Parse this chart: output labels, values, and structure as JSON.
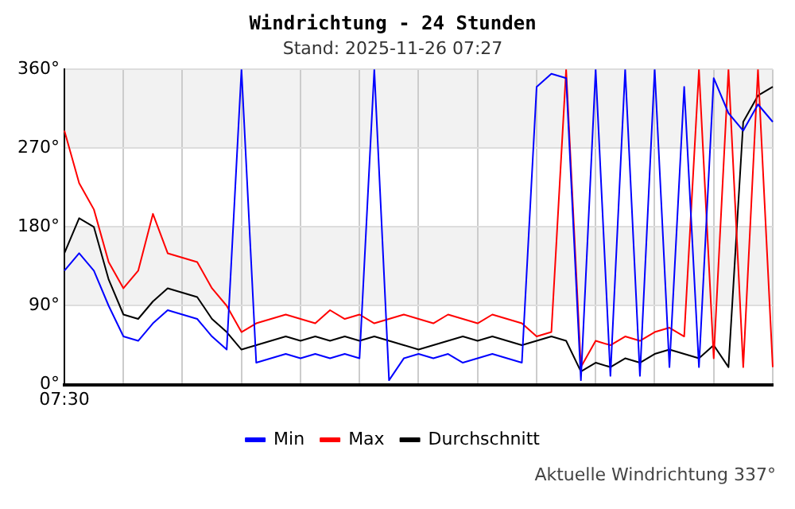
{
  "chart_data": {
    "type": "line",
    "title": "Windrichtung - 24 Stunden",
    "subtitle": "Stand: 2025-11-26 07:27",
    "annotations": [
      "Aktuelle Windrichtung 337°"
    ],
    "categories": [
      "07:30",
      null,
      null,
      null,
      null,
      null,
      null,
      null,
      null,
      null,
      null,
      null,
      null,
      null,
      null,
      null,
      null,
      null,
      null,
      null,
      null,
      null,
      null,
      null,
      null,
      null,
      null,
      null,
      null,
      null,
      null,
      null,
      null,
      null,
      null,
      null,
      null,
      null,
      null,
      null,
      null,
      null,
      null,
      null,
      null,
      null,
      null,
      null,
      null
    ],
    "ylim": [
      0,
      360
    ],
    "yticks": [
      {
        "value": 0,
        "label": "0°"
      },
      {
        "value": 90,
        "label": "90°"
      },
      {
        "value": 180,
        "label": "180°"
      },
      {
        "value": 270,
        "label": "270°"
      },
      {
        "value": 360,
        "label": "360°"
      }
    ],
    "grid": true,
    "legend": "bottom",
    "marker": "none",
    "line_style": "solid",
    "bands": [
      {
        "axis": "y",
        "from": 90,
        "to": 180,
        "color": "#f2f2f2"
      },
      {
        "axis": "y",
        "from": 270,
        "to": 360,
        "color": "#f2f2f2"
      }
    ],
    "series": [
      {
        "name": "Min",
        "color": "#0000ff",
        "values": [
          130,
          150,
          130,
          90,
          55,
          50,
          70,
          85,
          80,
          75,
          55,
          40,
          360,
          25,
          30,
          35,
          30,
          35,
          30,
          35,
          30,
          360,
          5,
          30,
          35,
          30,
          35,
          25,
          30,
          35,
          30,
          25,
          340,
          355,
          350,
          5,
          360,
          10,
          360,
          10,
          360,
          20,
          340,
          20,
          350,
          310,
          290,
          320,
          300
        ]
      },
      {
        "name": "Max",
        "color": "#ff0000",
        "values": [
          290,
          230,
          200,
          140,
          110,
          130,
          195,
          150,
          145,
          140,
          110,
          90,
          60,
          70,
          75,
          80,
          75,
          70,
          85,
          75,
          80,
          70,
          75,
          80,
          75,
          70,
          80,
          75,
          70,
          80,
          75,
          70,
          55,
          60,
          360,
          20,
          50,
          45,
          55,
          50,
          60,
          65,
          55,
          360,
          30,
          360,
          20,
          360,
          20
        ]
      },
      {
        "name": "Durchschnitt",
        "color": "#000000",
        "values": [
          150,
          190,
          180,
          120,
          80,
          75,
          95,
          110,
          105,
          100,
          75,
          60,
          40,
          45,
          50,
          55,
          50,
          55,
          50,
          55,
          50,
          55,
          50,
          45,
          40,
          45,
          50,
          55,
          50,
          55,
          50,
          45,
          50,
          55,
          50,
          15,
          25,
          20,
          30,
          25,
          35,
          40,
          35,
          30,
          45,
          20,
          300,
          330,
          340
        ]
      }
    ]
  }
}
